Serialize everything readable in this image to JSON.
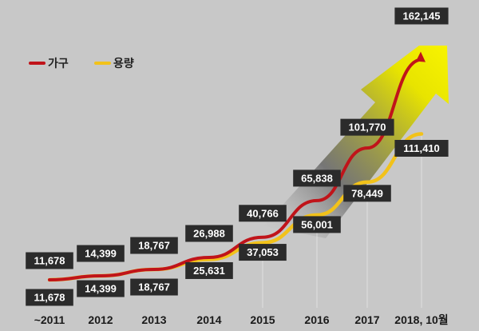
{
  "chart_data": {
    "type": "line",
    "categories": [
      "~2011",
      "2012",
      "2013",
      "2014",
      "2015",
      "2016",
      "2017",
      "2018, 10월"
    ],
    "series": [
      {
        "name": "가구",
        "color": "#c0141a",
        "values": [
          11678,
          14399,
          18767,
          26988,
          40766,
          65838,
          101770,
          162145
        ],
        "labels": [
          "11,678",
          "14,399",
          "18,767",
          "26,988",
          "40,766",
          "65,838",
          "101,770",
          "162,145"
        ]
      },
      {
        "name": "용량",
        "color": "#f2c21a",
        "values": [
          11678,
          14399,
          18767,
          25631,
          37053,
          56001,
          78449,
          111410
        ],
        "labels": [
          "11,678",
          "14,399",
          "18,767",
          "25,631",
          "37,053",
          "56,001",
          "78,449",
          "111,410"
        ]
      }
    ],
    "legend_position": "top-left",
    "grid": false,
    "arrow_colors": [
      "#4a4a4a",
      "#f5f000"
    ]
  }
}
